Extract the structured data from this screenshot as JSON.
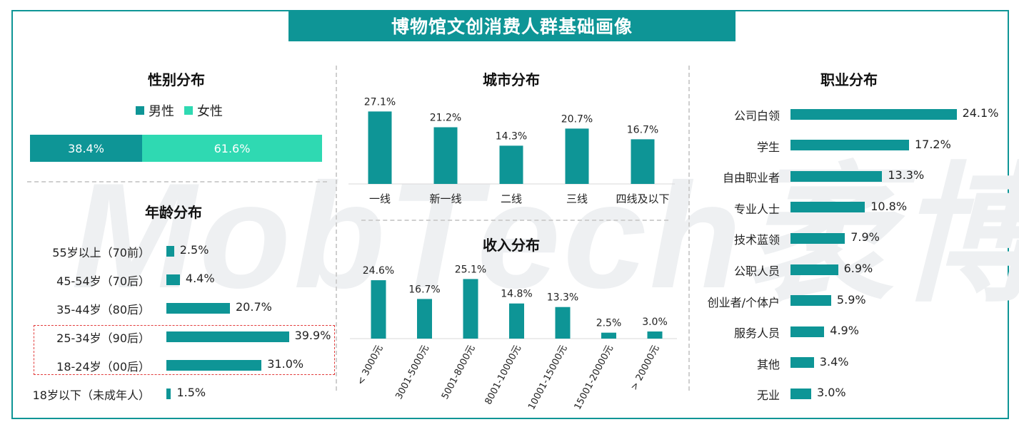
{
  "title": "博物馆文创消费人群基础画像",
  "watermark": "MobTech袤博",
  "colors": {
    "primary": "#0e9596",
    "secondary": "#2fd9b2",
    "highlight": "#e23b3b"
  },
  "chart_data": [
    {
      "type": "bar",
      "title": "性别分布",
      "stacked": true,
      "legend": [
        "男性",
        "女性"
      ],
      "series": [
        {
          "name": "男性",
          "values": [
            38.4
          ]
        },
        {
          "name": "女性",
          "values": [
            61.6
          ]
        }
      ],
      "value_labels": [
        "38.4%",
        "61.6%"
      ]
    },
    {
      "type": "bar",
      "title": "年龄分布",
      "orientation": "horizontal",
      "categories": [
        "55岁以上（70前）",
        "45-54岁（70后）",
        "35-44岁（80后）",
        "25-34岁（90后）",
        "18-24岁（00后）",
        "18岁以下（未成年人）"
      ],
      "values": [
        2.5,
        4.4,
        20.7,
        39.9,
        31.0,
        1.5
      ],
      "value_labels": [
        "2.5%",
        "4.4%",
        "20.7%",
        "39.9%",
        "31.0%",
        "1.5%"
      ],
      "highlighted": [
        "25-34岁（90后）",
        "18-24岁（00后）"
      ]
    },
    {
      "type": "bar",
      "title": "城市分布",
      "categories": [
        "一线",
        "新一线",
        "二线",
        "三线",
        "四线及以下"
      ],
      "values": [
        27.1,
        21.2,
        14.3,
        20.7,
        16.7
      ],
      "value_labels": [
        "27.1%",
        "21.2%",
        "14.3%",
        "20.7%",
        "16.7%"
      ]
    },
    {
      "type": "bar",
      "title": "收入分布",
      "categories": [
        "< 3000元",
        "3001-5000元",
        "5001-8000元",
        "8001-10000元",
        "10001-15000元",
        "15001-20000元",
        "> 20000元"
      ],
      "values": [
        24.6,
        16.7,
        25.1,
        14.8,
        13.3,
        2.5,
        3.0
      ],
      "value_labels": [
        "24.6%",
        "16.7%",
        "25.1%",
        "14.8%",
        "13.3%",
        "2.5%",
        "3.0%"
      ]
    },
    {
      "type": "bar",
      "title": "职业分布",
      "orientation": "horizontal",
      "categories": [
        "公司白领",
        "学生",
        "自由职业者",
        "专业人士",
        "技术蓝领",
        "公职人员",
        "创业者/个体户",
        "服务人员",
        "其他",
        "无业"
      ],
      "values": [
        24.1,
        17.2,
        13.3,
        10.8,
        7.9,
        6.9,
        5.9,
        4.9,
        3.4,
        3.0
      ],
      "value_labels": [
        "24.1%",
        "17.2%",
        "13.3%",
        "10.8%",
        "7.9%",
        "6.9%",
        "5.9%",
        "4.9%",
        "3.4%",
        "3.0%"
      ]
    }
  ]
}
